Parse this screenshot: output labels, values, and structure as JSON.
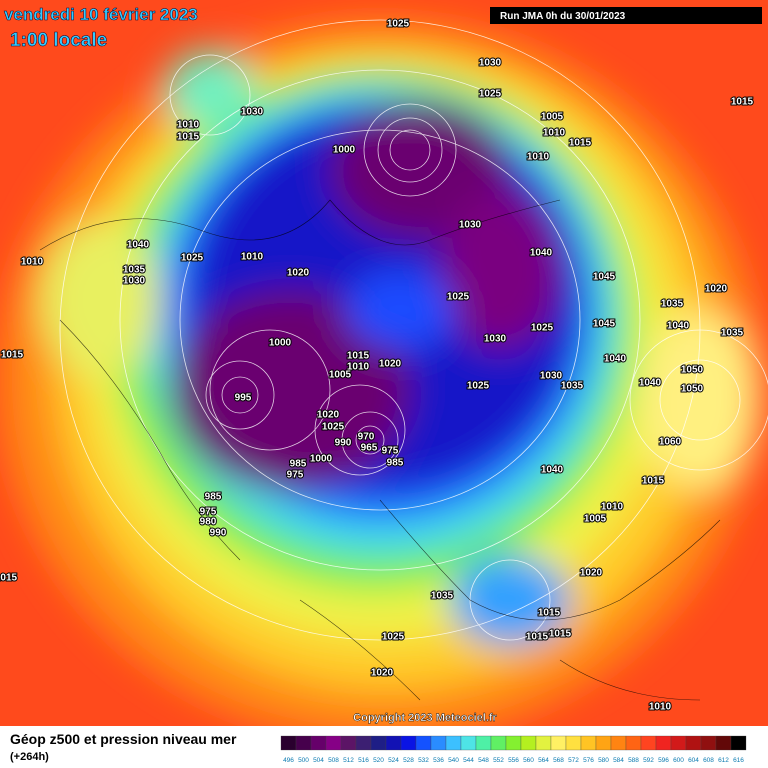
{
  "header": {
    "date": "vendredi 10 février 2023",
    "time": "1:00 locale",
    "run": "Run JMA 0h du 30/01/2023"
  },
  "copyright": "Copyright 2023 Meteociel.fr",
  "footer": {
    "title": "Géop z500 et pression niveau mer",
    "lead": "(+264h)"
  },
  "scale": {
    "values": [
      496,
      500,
      504,
      508,
      512,
      516,
      520,
      524,
      528,
      532,
      536,
      540,
      544,
      548,
      552,
      556,
      560,
      564,
      568,
      572,
      576,
      580,
      584,
      588,
      592,
      596,
      600,
      604,
      608,
      612,
      616
    ],
    "colors": [
      "#2a002e",
      "#46004c",
      "#66006a",
      "#860086",
      "#5c1466",
      "#3c1f72",
      "#1e1e86",
      "#1212b4",
      "#0a14e4",
      "#1452ff",
      "#2a8cff",
      "#3cc0ff",
      "#4ee4e6",
      "#4ef0a6",
      "#60f064",
      "#84f030",
      "#b4f020",
      "#e2f240",
      "#fff064",
      "#ffe040",
      "#ffc424",
      "#ffa414",
      "#ff8412",
      "#ff6414",
      "#ff4420",
      "#f02420",
      "#d21a1a",
      "#b01212",
      "#901010",
      "#620808",
      "#000000"
    ]
  },
  "isobar_labels": [
    1025,
    1030,
    1025,
    1030,
    1010,
    1015,
    1015,
    1005,
    1010,
    1015,
    1010,
    1000,
    1040,
    1025,
    1010,
    1035,
    1030,
    1010,
    1020,
    1030,
    1040,
    1045,
    1025,
    1035,
    1020,
    1040,
    1035,
    1045,
    1025,
    1030,
    1015,
    1000,
    1015,
    1010,
    1020,
    1040,
    1030,
    1035,
    1025,
    1040,
    1050,
    1050,
    995,
    1005,
    1020,
    1025,
    990,
    970,
    965,
    975,
    985,
    1000,
    975,
    985,
    1040,
    1060,
    1015,
    985,
    975,
    980,
    990,
    1010,
    1005,
    1020,
    1015,
    1035,
    1015,
    1015,
    1015,
    1025,
    1020,
    1010
  ]
}
